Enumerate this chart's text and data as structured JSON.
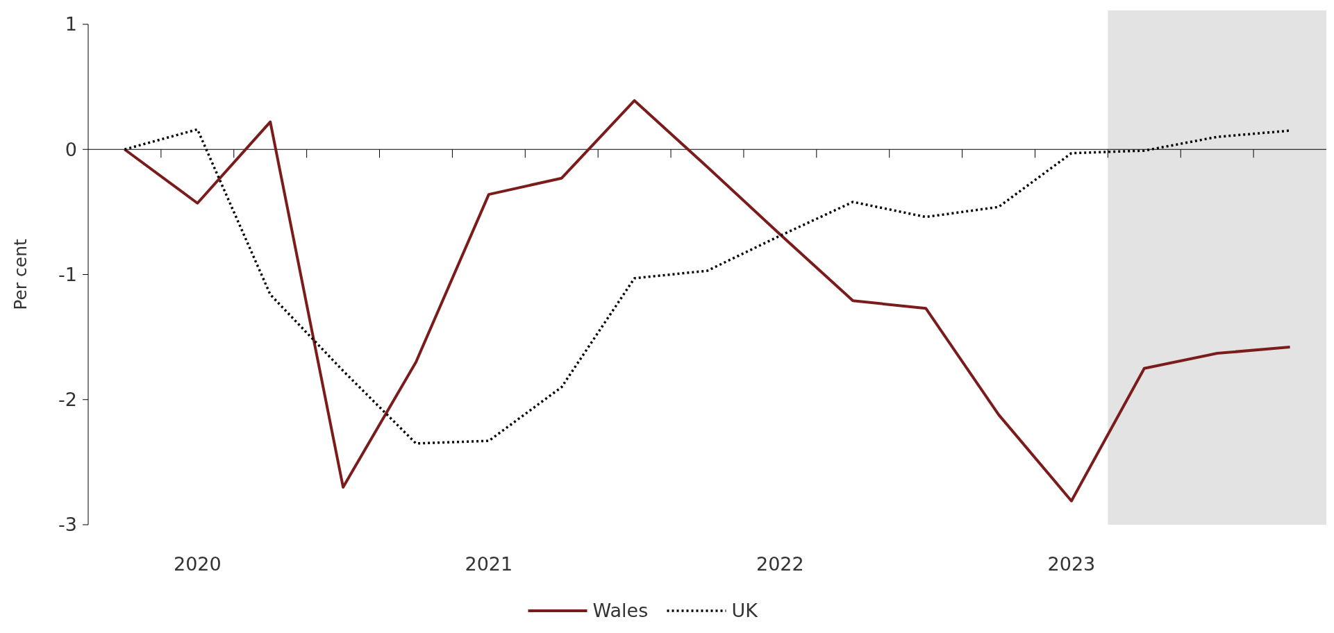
{
  "chart_data": {
    "type": "line",
    "ylabel": "Per cent",
    "x": [
      2019.75,
      2020,
      2020.25,
      2020.5,
      2020.75,
      2021,
      2021.25,
      2021.5,
      2021.75,
      2022,
      2022.25,
      2022.5,
      2022.75,
      2023,
      2023.25,
      2023.5,
      2023.75
    ],
    "xlim": [
      2019.625,
      2023.875
    ],
    "xticks": [
      {
        "value": 2019.875,
        "label": null
      },
      {
        "value": 2020,
        "label": "2020"
      },
      {
        "value": 2020.125,
        "label": null
      },
      {
        "value": 2020.375,
        "label": null
      },
      {
        "value": 2020.625,
        "label": null
      },
      {
        "value": 2020.875,
        "label": null
      },
      {
        "value": 2021,
        "label": "2021"
      },
      {
        "value": 2021.125,
        "label": null
      },
      {
        "value": 2021.375,
        "label": null
      },
      {
        "value": 2021.625,
        "label": null
      },
      {
        "value": 2021.875,
        "label": null
      },
      {
        "value": 2022,
        "label": "2022"
      },
      {
        "value": 2022.125,
        "label": null
      },
      {
        "value": 2022.375,
        "label": null
      },
      {
        "value": 2022.625,
        "label": null
      },
      {
        "value": 2022.875,
        "label": null
      },
      {
        "value": 2023,
        "label": "2023"
      },
      {
        "value": 2023.125,
        "label": null
      },
      {
        "value": 2023.375,
        "label": null
      },
      {
        "value": 2023.625,
        "label": null
      }
    ],
    "ylim": [
      -3,
      1
    ],
    "yticks": [
      -3,
      -2,
      -1,
      0,
      1
    ],
    "legend": "bottom",
    "ref_lines": [
      {
        "axis": "y",
        "value": 0,
        "color": "#000000"
      }
    ],
    "bands": [
      {
        "axis": "x",
        "from": 2023.125,
        "to": 2023.875,
        "color": "#e3e3e3"
      }
    ],
    "series": [
      {
        "name": "Wales",
        "color": "#7b1c1c",
        "line_style": "solid",
        "values": [
          0,
          -0.43,
          0.22,
          -2.7,
          -1.7,
          -0.36,
          -0.23,
          0.39,
          -0.14,
          -0.68,
          -1.21,
          -1.27,
          -2.12,
          -2.81,
          -1.75,
          -1.63,
          -1.58
        ]
      },
      {
        "name": "UK",
        "color": "#000000",
        "line_style": "dotted",
        "values": [
          0,
          0.16,
          -1.16,
          -1.77,
          -2.35,
          -2.33,
          -1.9,
          -1.03,
          -0.97,
          -0.69,
          -0.42,
          -0.54,
          -0.46,
          -0.03,
          -0.01,
          0.1,
          0.15
        ]
      }
    ]
  }
}
